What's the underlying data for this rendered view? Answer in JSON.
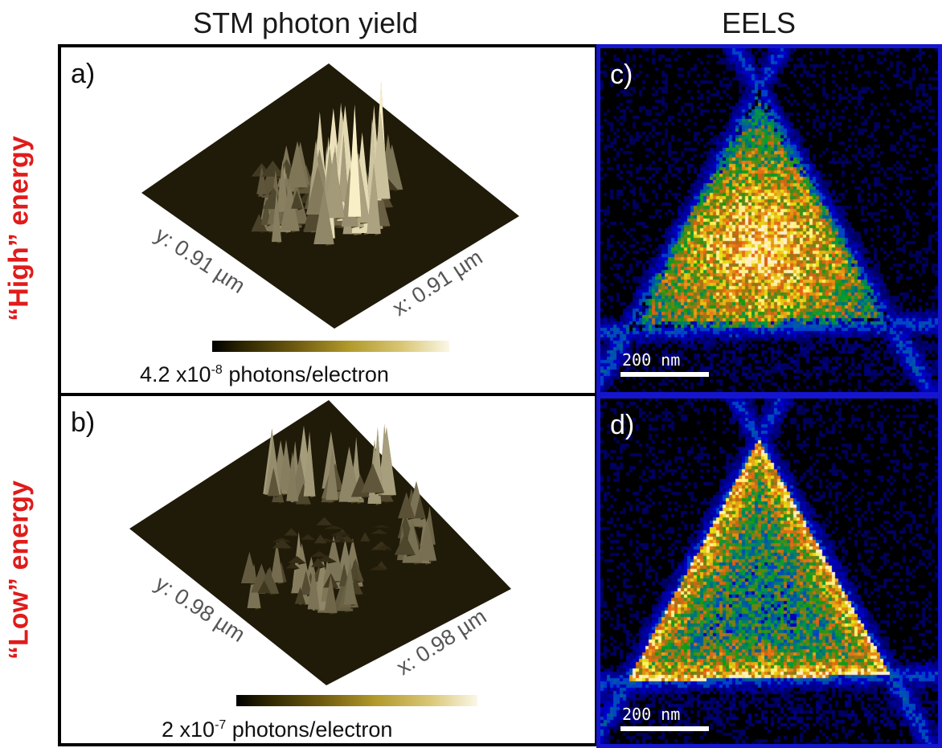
{
  "columns": {
    "stm_title": "STM photon yield",
    "eels_title": "EELS"
  },
  "rows": {
    "high_label": "“High” energy",
    "low_label": "“Low” energy"
  },
  "panels": {
    "a": {
      "letter": "a)",
      "y_axis": "y: 0.91 µm",
      "x_axis": "x: 0.91 µm",
      "colorbar_value": "4.2 x10",
      "colorbar_exp": "-8",
      "colorbar_unit": " photons/electron"
    },
    "b": {
      "letter": "b)",
      "y_axis": "y: 0.98 µm",
      "x_axis": "x: 0.98 µm",
      "colorbar_value": "2 x10",
      "colorbar_exp": "-7",
      "colorbar_unit": " photons/electron"
    },
    "c": {
      "letter": "c)",
      "scale": "200 nm"
    },
    "d": {
      "letter": "d)",
      "scale": "200 nm"
    }
  },
  "colors": {
    "row_label": "#e01b1b",
    "eels_border": "#1515d0",
    "stm_border": "#000000",
    "surface_base": "#1e1808",
    "surface_peak": "#fbf5d8"
  }
}
